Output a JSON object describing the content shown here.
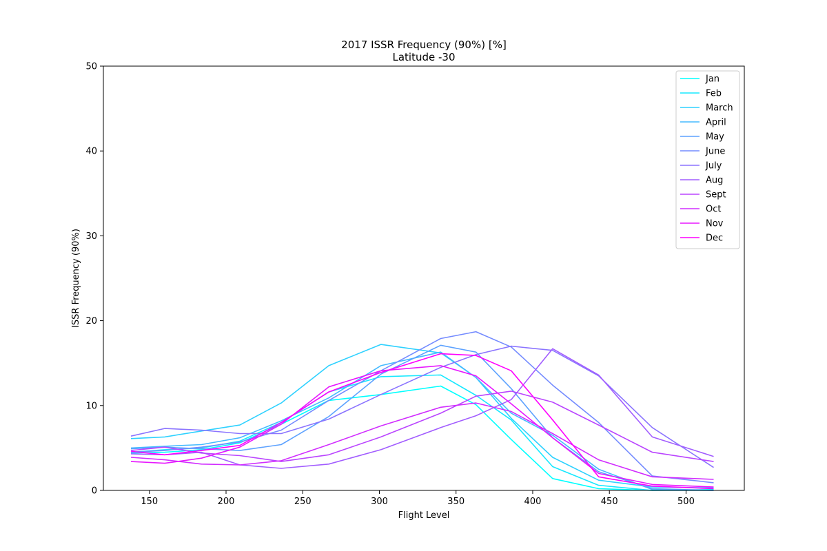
{
  "chart_data": {
    "type": "line",
    "title": "2017 ISSR Frequency (90%) [%]",
    "subtitle": "Latitude -30",
    "xlabel": "Flight Level",
    "ylabel": "ISSR Frequency (90%)",
    "xlim": [
      120,
      538
    ],
    "ylim": [
      0,
      50
    ],
    "xticks": [
      150,
      200,
      250,
      300,
      350,
      400,
      450,
      500
    ],
    "yticks": [
      0,
      10,
      20,
      30,
      40,
      50
    ],
    "grid": false,
    "legend_position": "top-right",
    "x": [
      138,
      160,
      184,
      209,
      236,
      267,
      301,
      340,
      363,
      386,
      413,
      443,
      478,
      518
    ],
    "series": [
      {
        "name": "Jan",
        "color": "#00ffff",
        "values": [
          4.4,
          4.5,
          4.8,
          5.6,
          7.8,
          10.6,
          11.3,
          12.3,
          10.1,
          6.0,
          1.4,
          0.2,
          0.0,
          0.1
        ]
      },
      {
        "name": "Feb",
        "color": "#17e8ff",
        "values": [
          4.5,
          4.8,
          5.0,
          5.8,
          8.0,
          11.6,
          13.4,
          13.6,
          11.2,
          8.3,
          2.8,
          0.6,
          0.0,
          0.0
        ]
      },
      {
        "name": "March",
        "color": "#2ed1ff",
        "values": [
          6.1,
          6.3,
          7.0,
          7.7,
          10.3,
          14.7,
          17.2,
          16.2,
          13.3,
          8.5,
          3.9,
          1.2,
          0.4,
          0.3
        ]
      },
      {
        "name": "April",
        "color": "#45baff",
        "values": [
          5.0,
          5.2,
          5.4,
          6.2,
          8.2,
          10.9,
          14.7,
          16.3,
          13.3,
          9.1,
          6.5,
          2.5,
          0.1,
          0.0
        ]
      },
      {
        "name": "May",
        "color": "#5da2ff",
        "values": [
          4.9,
          5.1,
          4.9,
          4.7,
          5.4,
          8.7,
          13.7,
          17.1,
          16.3,
          12.0,
          6.2,
          2.2,
          0.2,
          0.0
        ]
      },
      {
        "name": "June",
        "color": "#748bff",
        "values": [
          4.5,
          4.7,
          5.1,
          5.7,
          7.1,
          10.6,
          14.1,
          17.9,
          18.7,
          16.9,
          12.4,
          8.0,
          1.7,
          0.9
        ]
      },
      {
        "name": "July",
        "color": "#8b74ff",
        "values": [
          6.4,
          7.3,
          7.1,
          6.7,
          6.7,
          8.4,
          11.3,
          14.5,
          16.0,
          17.0,
          16.5,
          13.5,
          7.4,
          2.7
        ]
      },
      {
        "name": "Aug",
        "color": "#a25dff",
        "values": [
          4.3,
          4.2,
          4.5,
          3.0,
          2.6,
          3.1,
          4.8,
          7.4,
          8.8,
          10.7,
          16.7,
          13.6,
          6.3,
          4.0
        ]
      },
      {
        "name": "Sept",
        "color": "#ba45ff",
        "values": [
          4.7,
          5.1,
          4.4,
          4.1,
          3.4,
          4.2,
          6.3,
          9.1,
          11.1,
          11.7,
          10.4,
          7.7,
          4.5,
          3.4
        ]
      },
      {
        "name": "Oct",
        "color": "#d12eff",
        "values": [
          3.9,
          3.6,
          3.1,
          3.0,
          3.5,
          5.4,
          7.6,
          9.8,
          10.3,
          9.3,
          6.7,
          3.6,
          1.6,
          1.3
        ]
      },
      {
        "name": "Nov",
        "color": "#e817ff",
        "values": [
          3.4,
          3.2,
          3.8,
          5.1,
          7.8,
          12.2,
          14.1,
          14.7,
          13.5,
          10.2,
          6.2,
          2.0,
          0.7,
          0.4
        ]
      },
      {
        "name": "Dec",
        "color": "#ff00ff",
        "values": [
          4.6,
          4.2,
          4.7,
          5.3,
          8.0,
          11.6,
          13.9,
          16.1,
          15.9,
          14.1,
          8.3,
          1.6,
          0.5,
          0.2
        ]
      }
    ]
  }
}
